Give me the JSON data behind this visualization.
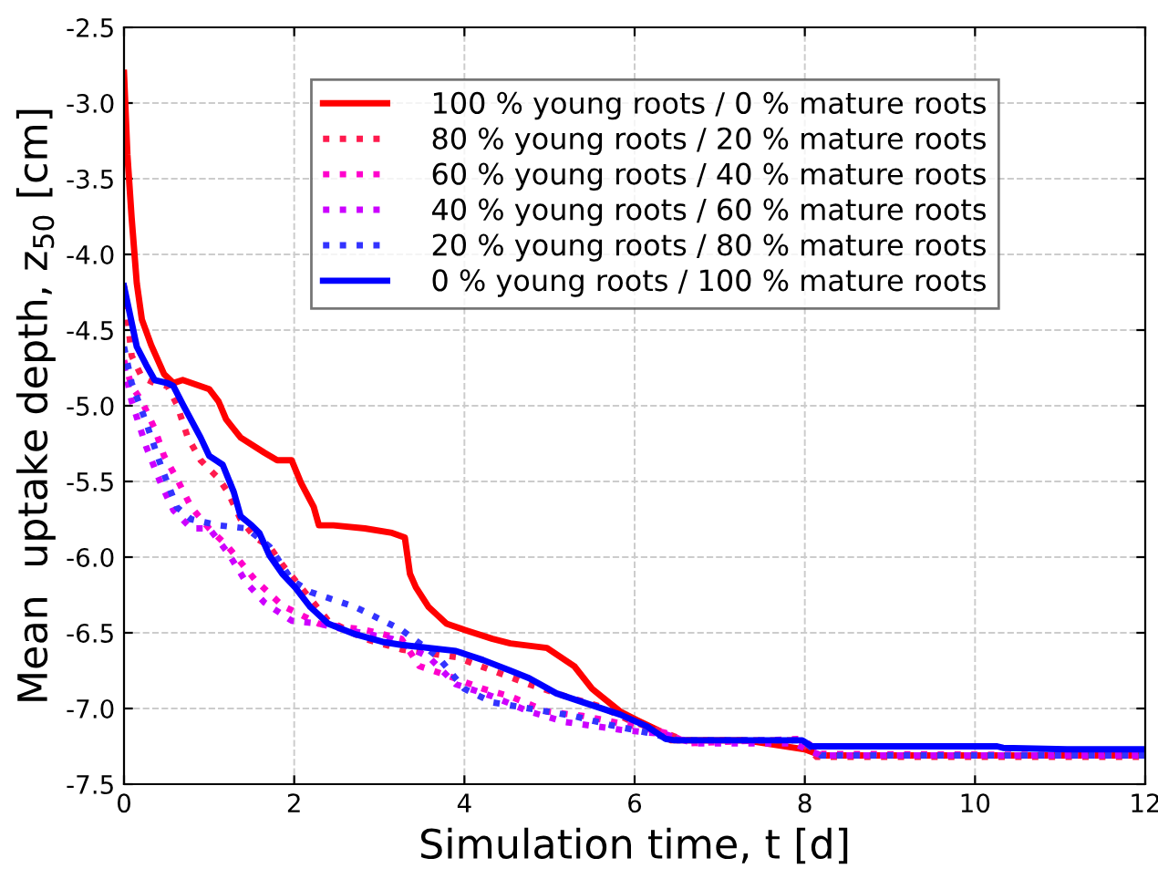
{
  "chart_data": {
    "type": "line",
    "xlabel": "Simulation time, t [d]",
    "ylabel": "Mean  uptake depth, z$_{50}$ [cm]",
    "xlim": [
      0,
      12
    ],
    "xticks": [
      0,
      2,
      4,
      6,
      8,
      10,
      12
    ],
    "ylim": [
      -7.5,
      -2.5
    ],
    "yticks": [
      {
        "value": -2.5,
        "label": "-2.5"
      },
      {
        "value": -3.0,
        "label": "-3.0"
      },
      {
        "value": -3.5,
        "label": "-3.5"
      },
      {
        "value": -4.0,
        "label": "-4.0"
      },
      {
        "value": -4.5,
        "label": "-4.5"
      },
      {
        "value": -5.0,
        "label": "-5.0"
      },
      {
        "value": -5.5,
        "label": "-5.5"
      },
      {
        "value": -6.0,
        "label": "-6.0"
      },
      {
        "value": -6.5,
        "label": "-6.5"
      },
      {
        "value": -7.0,
        "label": "-7.0"
      },
      {
        "value": -7.5,
        "label": "-7.5"
      }
    ],
    "grid": true,
    "legend": "top",
    "marker": "none",
    "series": [
      {
        "name": "100 % young roots / 0 % mature roots",
        "color": "#ff0000",
        "line_style": "solid",
        "x": [
          0,
          0.04,
          0.09,
          0.15,
          0.21,
          0.32,
          0.47,
          0.58,
          0.69,
          1.0,
          1.11,
          1.2,
          1.37,
          1.65,
          1.8,
          1.97,
          2.08,
          2.23,
          2.29,
          2.46,
          2.83,
          3.15,
          3.3,
          3.36,
          3.43,
          3.58,
          3.79,
          4.0,
          4.33,
          4.54,
          4.97,
          5.29,
          5.5,
          5.83,
          6.04,
          6.26,
          6.43,
          7.3,
          8.0,
          8.19,
          12
        ],
        "values": [
          -2.8,
          -3.34,
          -3.76,
          -4.19,
          -4.43,
          -4.6,
          -4.79,
          -4.85,
          -4.83,
          -4.89,
          -4.97,
          -5.09,
          -5.21,
          -5.31,
          -5.36,
          -5.36,
          -5.51,
          -5.67,
          -5.79,
          -5.79,
          -5.81,
          -5.84,
          -5.87,
          -6.11,
          -6.2,
          -6.33,
          -6.44,
          -6.48,
          -6.54,
          -6.57,
          -6.6,
          -6.72,
          -6.87,
          -7.02,
          -7.08,
          -7.14,
          -7.21,
          -7.21,
          -7.27,
          -7.31,
          -7.31
        ]
      },
      {
        "name": "80 % young roots / 20 % mature roots",
        "color": "#ff1a4d",
        "line_style": "dotted",
        "x": [
          0,
          0.09,
          0.21,
          0.36,
          0.51,
          0.62,
          0.75,
          0.9,
          1.11,
          1.22,
          1.37,
          1.54,
          1.71,
          1.86,
          2.08,
          2.4,
          2.83,
          3.26,
          3.9,
          4.33,
          4.76,
          5.19,
          5.61,
          5.94,
          6.26,
          6.58,
          7.93,
          8.14,
          12
        ],
        "values": [
          -4.21,
          -4.67,
          -4.81,
          -4.85,
          -4.87,
          -4.99,
          -5.21,
          -5.36,
          -5.48,
          -5.57,
          -5.75,
          -5.87,
          -5.93,
          -6.05,
          -6.2,
          -6.42,
          -6.54,
          -6.61,
          -6.66,
          -6.75,
          -6.84,
          -6.92,
          -6.99,
          -7.08,
          -7.14,
          -7.21,
          -7.21,
          -7.32,
          -7.32
        ]
      },
      {
        "name": "60 % young roots / 40 % mature roots",
        "color": "#ff00cc",
        "line_style": "dotted",
        "x": [
          0,
          0.09,
          0.21,
          0.36,
          0.47,
          0.62,
          0.79,
          1.0,
          1.22,
          1.54,
          1.86,
          2.29,
          2.83,
          3.26,
          3.47,
          3.79,
          4.22,
          4.54,
          4.97,
          5.4,
          5.94,
          6.36,
          6.64,
          7.97,
          8.19,
          12
        ],
        "values": [
          -4.7,
          -4.87,
          -4.97,
          -5.15,
          -5.33,
          -5.48,
          -5.67,
          -5.81,
          -5.93,
          -6.15,
          -6.32,
          -6.44,
          -6.48,
          -6.54,
          -6.72,
          -6.78,
          -6.87,
          -6.92,
          -7.02,
          -7.05,
          -7.11,
          -7.16,
          -7.23,
          -7.2,
          -7.3,
          -7.31
        ]
      },
      {
        "name": "40 % young roots / 60 % mature roots",
        "color": "#cc00ff",
        "line_style": "dotted",
        "x": [
          0,
          0.09,
          0.26,
          0.43,
          0.58,
          0.79,
          1.0,
          1.22,
          1.44,
          1.65,
          1.97,
          2.29,
          2.61,
          3.15,
          3.58,
          3.9,
          4.33,
          4.76,
          5.19,
          5.83,
          6.36,
          6.69,
          7.86,
          8.19,
          12
        ],
        "values": [
          -4.73,
          -4.97,
          -5.27,
          -5.51,
          -5.69,
          -5.81,
          -5.81,
          -5.97,
          -6.17,
          -6.3,
          -6.42,
          -6.44,
          -6.48,
          -6.54,
          -6.66,
          -6.84,
          -6.92,
          -7.02,
          -7.09,
          -7.14,
          -7.17,
          -7.23,
          -7.23,
          -7.31,
          -7.31
        ]
      },
      {
        "name": "20 % young roots / 80 % mature roots",
        "color": "#3333ff",
        "line_style": "dotted",
        "x": [
          0,
          0.09,
          0.26,
          0.43,
          0.62,
          0.79,
          1.11,
          1.44,
          1.71,
          1.97,
          2.19,
          2.4,
          2.72,
          3.26,
          3.69,
          4.0,
          4.33,
          4.76,
          5.29,
          5.72,
          6.15,
          6.51,
          7.97,
          8.19,
          12
        ],
        "values": [
          -4.61,
          -4.85,
          -5.11,
          -5.39,
          -5.67,
          -5.75,
          -5.79,
          -5.81,
          -5.93,
          -6.15,
          -6.23,
          -6.27,
          -6.33,
          -6.48,
          -6.66,
          -6.87,
          -6.96,
          -7.0,
          -7.05,
          -7.11,
          -7.16,
          -7.21,
          -7.21,
          -7.31,
          -7.31
        ]
      },
      {
        "name": "0 % young roots / 100 % mature roots",
        "color": "#0000ff",
        "line_style": "solid",
        "x": [
          0,
          0.15,
          0.26,
          0.36,
          0.51,
          0.58,
          0.69,
          0.9,
          1.0,
          1.16,
          1.29,
          1.37,
          1.5,
          1.59,
          1.71,
          1.86,
          2.01,
          2.19,
          2.4,
          2.72,
          3.04,
          3.26,
          3.9,
          4.22,
          4.54,
          4.76,
          5.08,
          5.4,
          5.83,
          6.15,
          6.36,
          6.47,
          7.97,
          8.08,
          10.26,
          10.33,
          11.08,
          12
        ],
        "values": [
          -4.21,
          -4.61,
          -4.73,
          -4.83,
          -4.85,
          -4.87,
          -4.99,
          -5.21,
          -5.33,
          -5.39,
          -5.57,
          -5.73,
          -5.79,
          -5.84,
          -5.99,
          -6.11,
          -6.2,
          -6.33,
          -6.44,
          -6.51,
          -6.56,
          -6.58,
          -6.62,
          -6.68,
          -6.75,
          -6.8,
          -6.9,
          -6.96,
          -7.04,
          -7.12,
          -7.2,
          -7.21,
          -7.21,
          -7.25,
          -7.25,
          -7.26,
          -7.27,
          -7.27
        ]
      }
    ]
  }
}
